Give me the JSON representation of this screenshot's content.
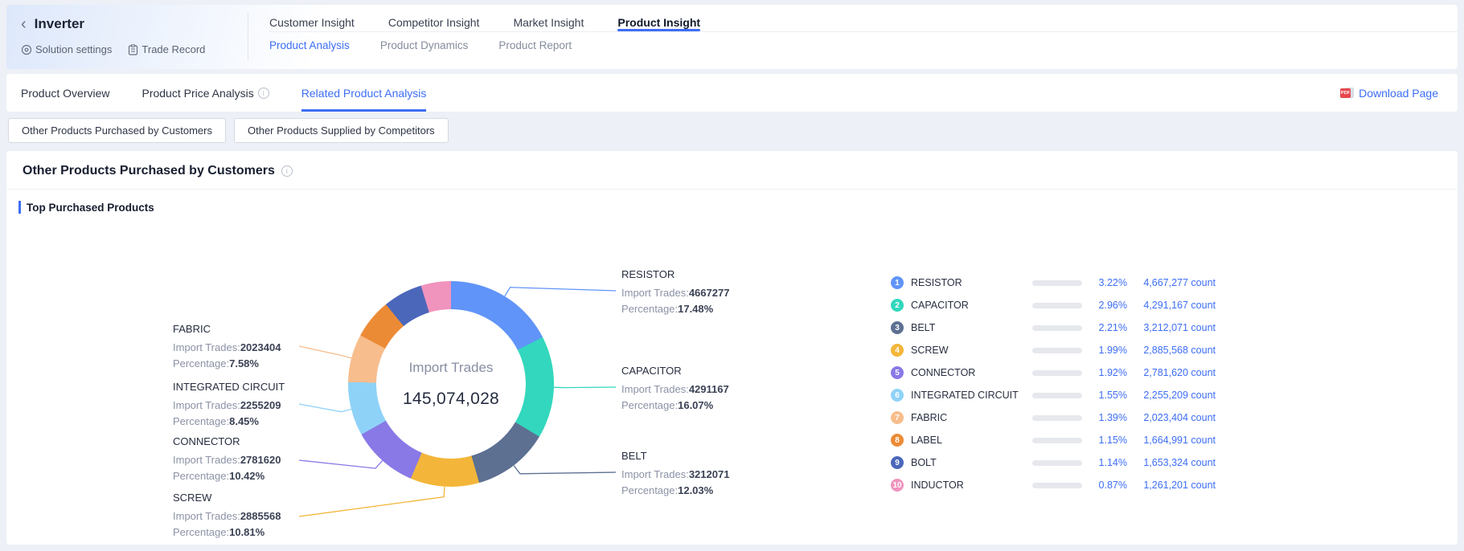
{
  "accent": "#3d6ef5",
  "header": {
    "back_icon": "‹",
    "title": "Inverter",
    "actions": [
      {
        "label": "Solution settings",
        "icon": "target-icon"
      },
      {
        "label": "Trade Record",
        "icon": "clipboard-icon"
      }
    ],
    "tabs": [
      {
        "label": "Customer Insight",
        "active": false
      },
      {
        "label": "Competitor Insight",
        "active": false
      },
      {
        "label": "Market Insight",
        "active": false
      },
      {
        "label": "Product Insight",
        "active": true
      }
    ],
    "subtabs": [
      {
        "label": "Product Analysis",
        "active": true
      },
      {
        "label": "Product Dynamics",
        "active": false
      },
      {
        "label": "Product Report",
        "active": false
      }
    ]
  },
  "nav": {
    "items": [
      {
        "label": "Product Overview",
        "active": false,
        "info": false
      },
      {
        "label": "Product Price Analysis",
        "active": false,
        "info": true
      },
      {
        "label": "Related Product Analysis",
        "active": true,
        "info": false
      }
    ],
    "download_label": "Download Page",
    "pdf_badge": "PDF"
  },
  "toggles": [
    {
      "label": "Other Products Purchased by Customers"
    },
    {
      "label": "Other Products Supplied by Competitors"
    }
  ],
  "panel": {
    "heading": "Other Products Purchased by Customers",
    "section_title": "Top Purchased Products"
  },
  "chart_data": {
    "type": "pie",
    "subtype": "donut",
    "title": "Top Purchased Products",
    "center_label": "Import Trades",
    "center_value": "145,074,028",
    "legend_position": "right",
    "callout_trades_prefix": "Import Trades:",
    "callout_pct_prefix": "Percentage:",
    "items": [
      {
        "rank": 1,
        "name": "RESISTOR",
        "import_trades": 4667277,
        "count_label": "4,667,277 count",
        "pct_of_total": "3.22%",
        "pct_of_chart": "17.48%",
        "color": "#6094f8",
        "show_callout": true
      },
      {
        "rank": 2,
        "name": "CAPACITOR",
        "import_trades": 4291167,
        "count_label": "4,291,167 count",
        "pct_of_total": "2.96%",
        "pct_of_chart": "16.07%",
        "color": "#32d7bd",
        "show_callout": true
      },
      {
        "rank": 3,
        "name": "BELT",
        "import_trades": 3212071,
        "count_label": "3,212,071 count",
        "pct_of_total": "2.21%",
        "pct_of_chart": "12.03%",
        "color": "#5d7092",
        "show_callout": true
      },
      {
        "rank": 4,
        "name": "SCREW",
        "import_trades": 2885568,
        "count_label": "2,885,568 count",
        "pct_of_total": "1.99%",
        "pct_of_chart": "10.81%",
        "color": "#f3b63a",
        "show_callout": true
      },
      {
        "rank": 5,
        "name": "CONNECTOR",
        "import_trades": 2781620,
        "count_label": "2,781,620 count",
        "pct_of_total": "1.92%",
        "pct_of_chart": "10.42%",
        "color": "#8879e6",
        "show_callout": true
      },
      {
        "rank": 6,
        "name": "INTEGRATED CIRCUIT",
        "import_trades": 2255209,
        "count_label": "2,255,209 count",
        "pct_of_total": "1.55%",
        "pct_of_chart": "8.45%",
        "color": "#8fd2f8",
        "show_callout": true
      },
      {
        "rank": 7,
        "name": "FABRIC",
        "import_trades": 2023404,
        "count_label": "2,023,404 count",
        "pct_of_total": "1.39%",
        "pct_of_chart": "7.58%",
        "color": "#f7bd8d",
        "show_callout": true
      },
      {
        "rank": 8,
        "name": "LABEL",
        "import_trades": 1664991,
        "count_label": "1,664,991 count",
        "pct_of_total": "1.15%",
        "color": "#ec8b35",
        "show_callout": false
      },
      {
        "rank": 9,
        "name": "BOLT",
        "import_trades": 1653324,
        "count_label": "1,653,324 count",
        "pct_of_total": "1.14%",
        "color": "#4b67ba",
        "show_callout": false
      },
      {
        "rank": 10,
        "name": "INDUCTOR",
        "import_trades": 1261201,
        "count_label": "1,261,201 count",
        "pct_of_total": "0.87%",
        "color": "#f093bd",
        "show_callout": false
      }
    ]
  }
}
